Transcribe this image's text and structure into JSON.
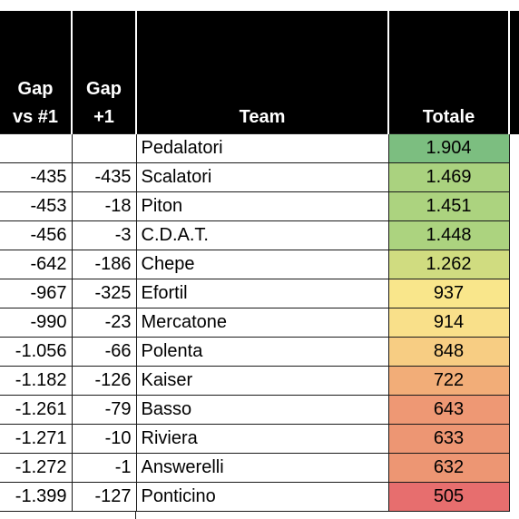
{
  "headers": {
    "gap_first": [
      "Gap",
      "vs #1"
    ],
    "gap_prev": [
      "Gap",
      "+1"
    ],
    "team": "Team",
    "total": "Totale"
  },
  "rows": [
    {
      "gap_first": "",
      "gap_prev": "",
      "team": "Pedalatori",
      "total": "1.904",
      "color": "#7cbe80"
    },
    {
      "gap_first": "-435",
      "gap_prev": "-435",
      "team": "Scalatori",
      "total": "1.469",
      "color": "#aad27f"
    },
    {
      "gap_first": "-453",
      "gap_prev": "-18",
      "team": "Piton",
      "total": "1.451",
      "color": "#acd37f"
    },
    {
      "gap_first": "-456",
      "gap_prev": "-3",
      "team": "C.D.A.T.",
      "total": "1.448",
      "color": "#acd37f"
    },
    {
      "gap_first": "-642",
      "gap_prev": "-186",
      "team": "Chepe",
      "total": "1.262",
      "color": "#d0dc80"
    },
    {
      "gap_first": "-967",
      "gap_prev": "-325",
      "team": "Efortil",
      "total": "937",
      "color": "#f9e68b"
    },
    {
      "gap_first": "-990",
      "gap_prev": "-23",
      "team": "Mercatone",
      "total": "914",
      "color": "#f9e08a"
    },
    {
      "gap_first": "-1.056",
      "gap_prev": "-66",
      "team": "Polenta",
      "total": "848",
      "color": "#f7cd83"
    },
    {
      "gap_first": "-1.182",
      "gap_prev": "-126",
      "team": "Kaiser",
      "total": "722",
      "color": "#f2ad78"
    },
    {
      "gap_first": "-1.261",
      "gap_prev": "-79",
      "team": "Basso",
      "total": "643",
      "color": "#ee9874"
    },
    {
      "gap_first": "-1.271",
      "gap_prev": "-10",
      "team": "Riviera",
      "total": "633",
      "color": "#ed9673"
    },
    {
      "gap_first": "-1.272",
      "gap_prev": "-1",
      "team": "Answerelli",
      "total": "632",
      "color": "#ed9673"
    },
    {
      "gap_first": "-1.399",
      "gap_prev": "-127",
      "team": "Ponticino",
      "total": "505",
      "color": "#e76e6e"
    }
  ]
}
